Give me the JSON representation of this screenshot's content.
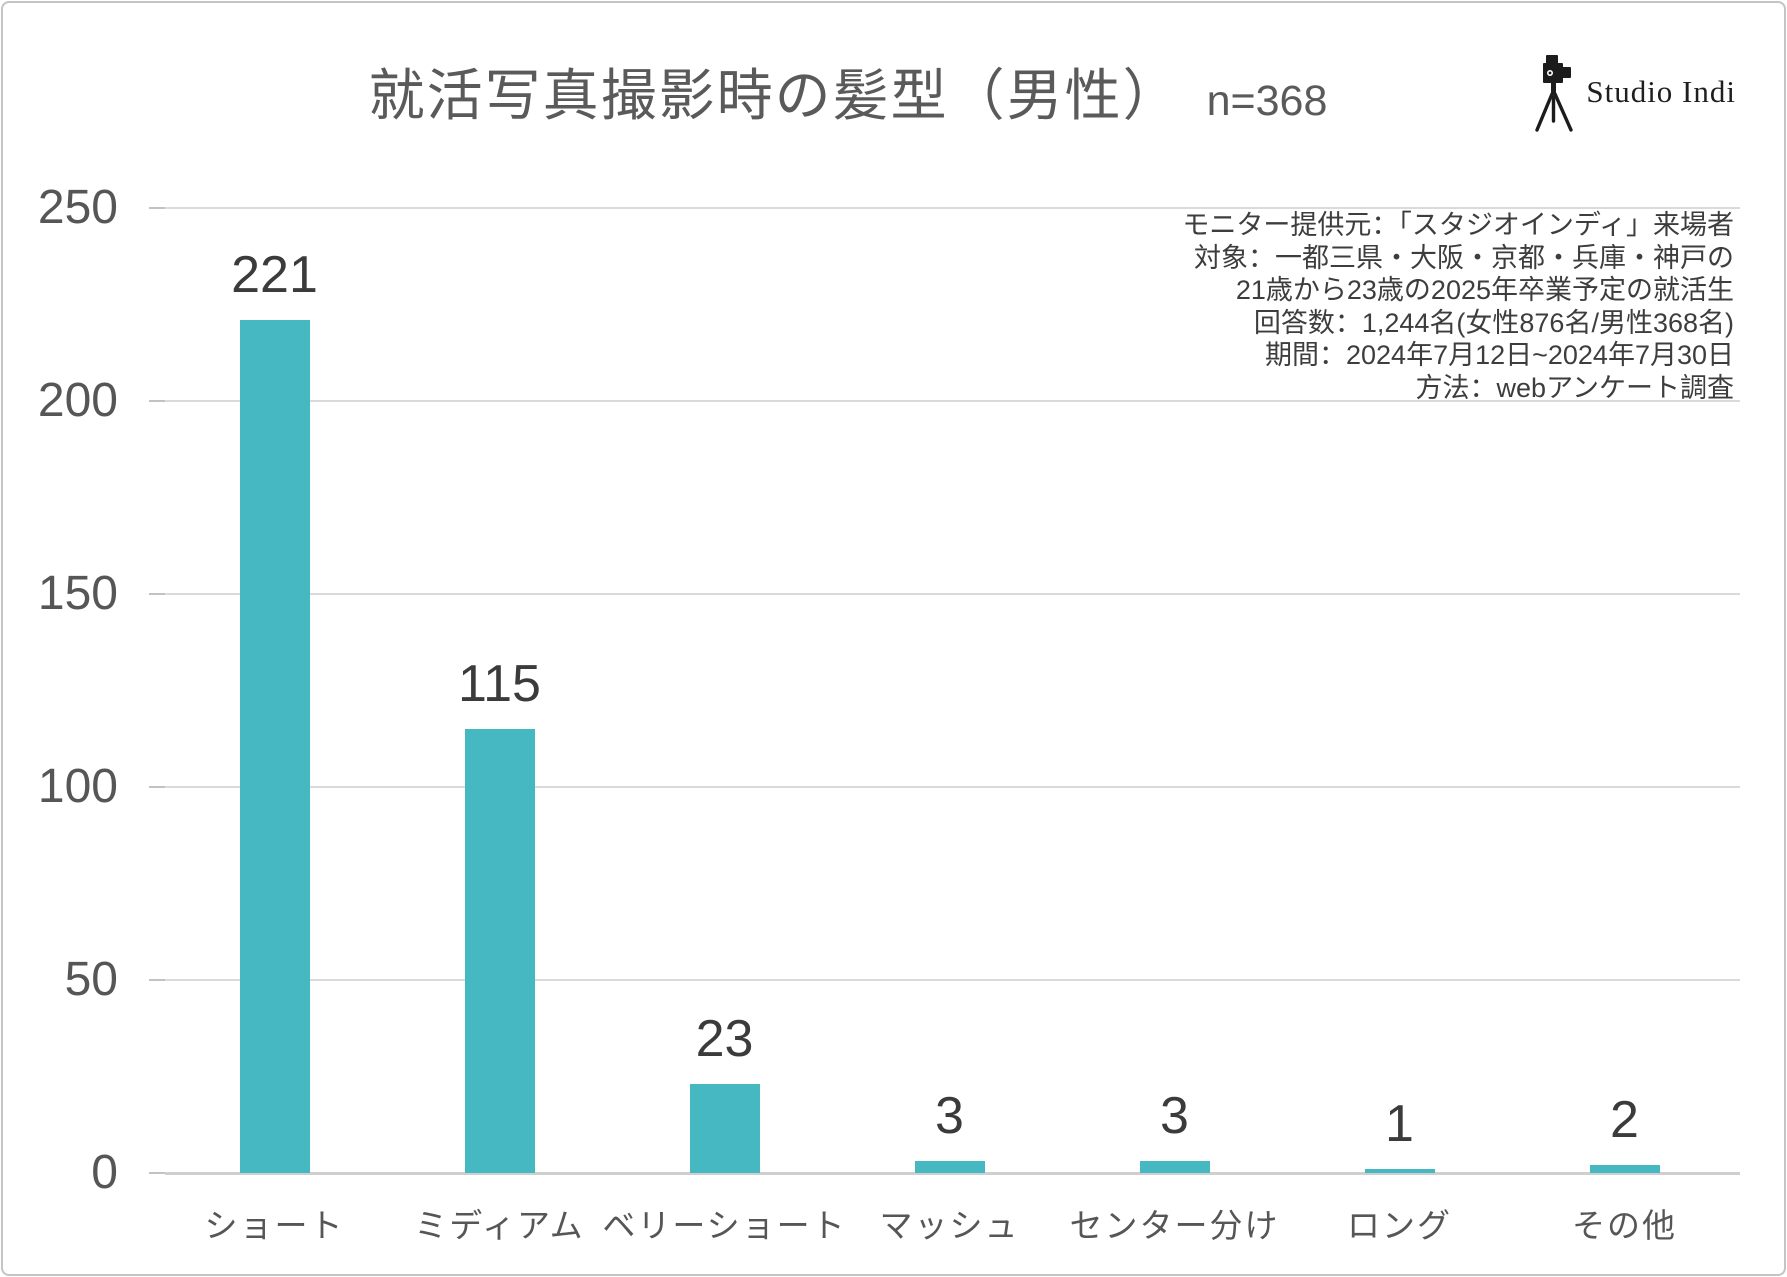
{
  "header": {
    "title": "就活写真撮影時の髪型（男性）",
    "n_label": "n=368"
  },
  "logo": {
    "name": "Studio Indi",
    "icon": "camera-tripod-icon"
  },
  "note": {
    "lines": [
      "モニター提供元：「スタジオインディ」来場者",
      "対象：一都三県・大阪・京都・兵庫・神戸の",
      "21歳から23歳の2025年卒業予定の就活生",
      "回答数：1,244名(女性876名/男性368名)",
      "期間：2024年7月12日~2024年7月30日",
      "方法：webアンケート調査"
    ]
  },
  "chart_data": {
    "type": "bar",
    "title": "就活写真撮影時の髪型（男性）",
    "sample_size": 368,
    "categories": [
      "ショート",
      "ミディアム",
      "ベリーショート",
      "マッシュ",
      "センター分け",
      "ロング",
      "その他"
    ],
    "values": [
      221,
      115,
      23,
      3,
      3,
      1,
      2
    ],
    "xlabel": "",
    "ylabel": "",
    "ylim": [
      0,
      250
    ],
    "yticks": [
      0,
      50,
      100,
      150,
      200,
      250
    ],
    "grid": true,
    "legend": "none",
    "bar_color": "#45b8c1"
  },
  "colors": {
    "bar": "#45b8c1",
    "gridline": "#dadada",
    "axis_line": "#cfcfcf",
    "title_text": "#5a5a5a",
    "value_label": "#3b3b3b",
    "axis_label": "#565656",
    "note_text": "#3d3d3d",
    "logo_text": "#1f1f1f",
    "border": "#c4c4c4"
  }
}
